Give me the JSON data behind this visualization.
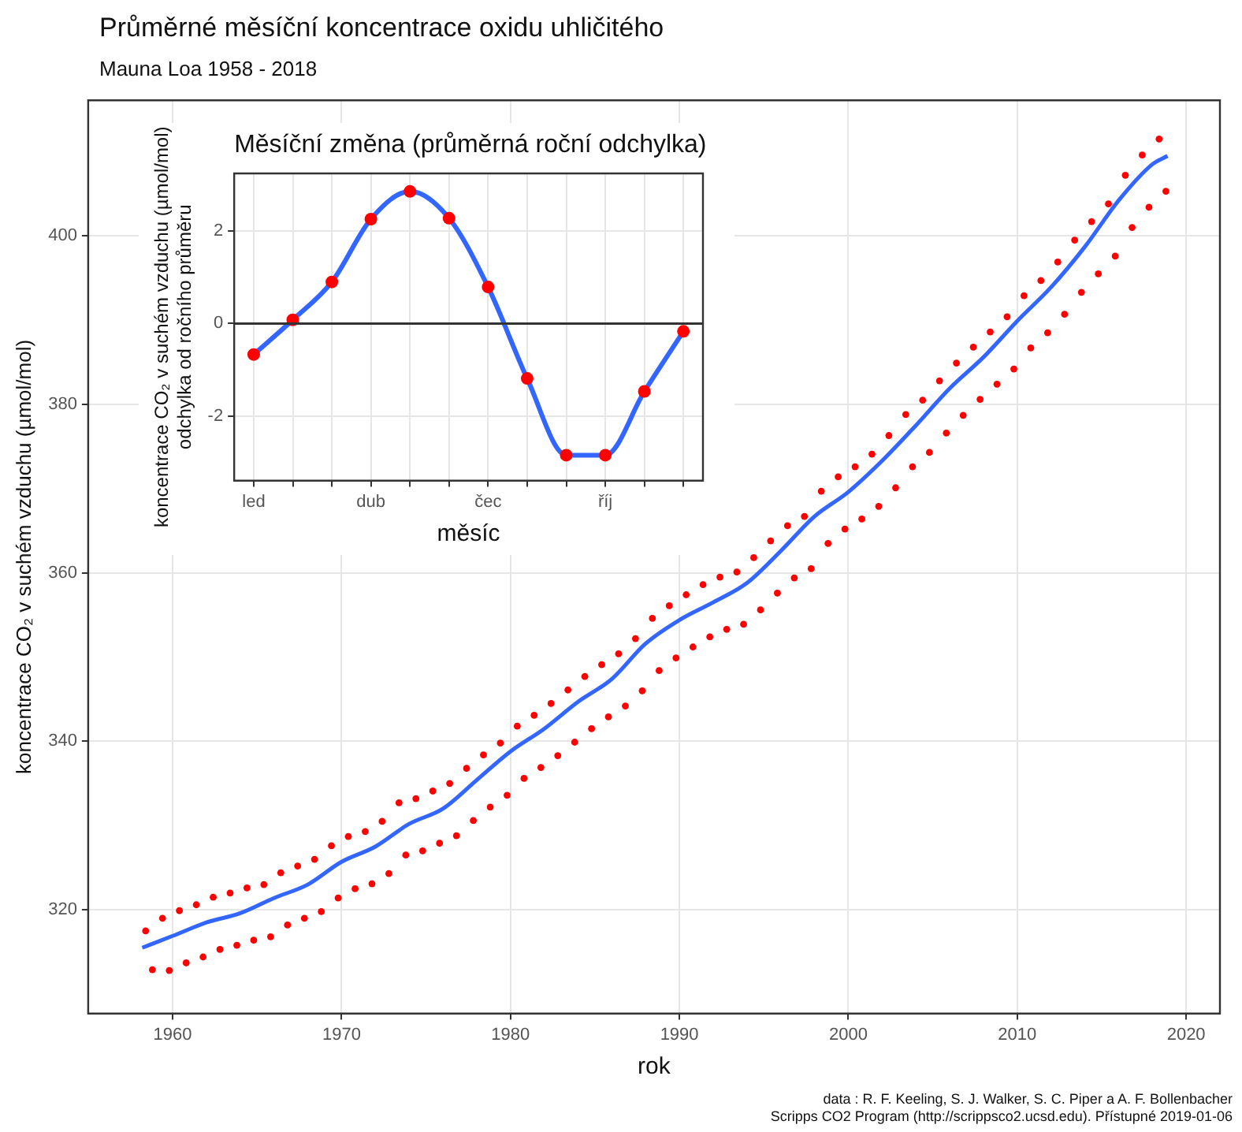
{
  "chart_data": [
    {
      "type": "scatter",
      "title": "Průměrné měsíční koncentrace oxidu uhličitého",
      "subtitle": "Mauna Loa 1958 - 2018",
      "xlabel": "rok",
      "ylabel": "koncentrace CO₂ v suchém vzduchu (µmol/mol)",
      "xlim": [
        1955,
        2022
      ],
      "ylim": [
        307.7,
        416.1
      ],
      "xticks": [
        1960,
        1970,
        1980,
        1990,
        2000,
        2010,
        2020
      ],
      "yticks": [
        320,
        340,
        360,
        380,
        400
      ],
      "grid": true,
      "annotations": [
        "data : R. F. Keeling, S. J. Walker, S. C. Piper a A. F. Bollenbacher",
        "Scripps CO2 Program (http://scrippsco2.ucsd.edu). Přístupné 2019-01-06"
      ],
      "series": [
        {
          "marker": "circle",
          "color": "#ff0000",
          "x": [
            1958.4,
            1958.8,
            1959.4,
            1959.8,
            1960.4,
            1960.8,
            1961.4,
            1961.8,
            1962.4,
            1962.8,
            1963.4,
            1963.8,
            1964.4,
            1964.8,
            1965.4,
            1965.8,
            1966.4,
            1966.8,
            1967.4,
            1967.8,
            1968.4,
            1968.8,
            1969.4,
            1969.8,
            1970.4,
            1970.8,
            1971.4,
            1971.8,
            1972.4,
            1972.8,
            1973.4,
            1973.8,
            1974.4,
            1974.8,
            1975.4,
            1975.8,
            1976.4,
            1976.8,
            1977.4,
            1977.8,
            1978.4,
            1978.8,
            1979.4,
            1979.8,
            1980.4,
            1980.8,
            1981.4,
            1981.8,
            1982.4,
            1982.8,
            1983.4,
            1983.8,
            1984.4,
            1984.8,
            1985.4,
            1985.8,
            1986.4,
            1986.8,
            1987.4,
            1987.8,
            1988.4,
            1988.8,
            1989.4,
            1989.8,
            1990.4,
            1990.8,
            1991.4,
            1991.8,
            1992.4,
            1992.8,
            1993.4,
            1993.8,
            1994.4,
            1994.8,
            1995.4,
            1995.8,
            1996.4,
            1996.8,
            1997.4,
            1997.8,
            1998.4,
            1998.8,
            1999.4,
            1999.8,
            2000.4,
            2000.8,
            2001.4,
            2001.8,
            2002.4,
            2002.8,
            2003.4,
            2003.8,
            2004.4,
            2004.8,
            2005.4,
            2005.8,
            2006.4,
            2006.8,
            2007.4,
            2007.8,
            2008.4,
            2008.8,
            2009.4,
            2009.8,
            2010.4,
            2010.8,
            2011.4,
            2011.8,
            2012.4,
            2012.8,
            2013.4,
            2013.8,
            2014.4,
            2014.8,
            2015.4,
            2015.8,
            2016.4,
            2016.8,
            2017.4,
            2017.8,
            2018.4,
            2018.8
          ],
          "values": [
            317.5,
            312.9,
            319.0,
            312.8,
            319.9,
            313.7,
            320.6,
            314.4,
            321.5,
            315.3,
            322.0,
            315.8,
            322.6,
            316.4,
            323.0,
            316.8,
            324.4,
            318.2,
            325.2,
            319.0,
            326.0,
            319.8,
            327.6,
            321.4,
            328.7,
            322.5,
            329.3,
            323.1,
            330.5,
            324.3,
            332.7,
            326.5,
            333.2,
            327.0,
            334.1,
            327.9,
            335.0,
            328.8,
            336.8,
            330.6,
            338.4,
            332.2,
            339.8,
            333.6,
            341.8,
            335.6,
            343.1,
            336.9,
            344.5,
            338.3,
            346.1,
            339.9,
            347.7,
            341.5,
            349.1,
            342.9,
            350.4,
            344.2,
            352.2,
            346.0,
            354.6,
            348.4,
            356.1,
            349.9,
            357.4,
            351.2,
            358.6,
            352.4,
            359.5,
            353.3,
            360.1,
            353.9,
            361.8,
            355.6,
            363.8,
            357.6,
            365.6,
            359.4,
            366.7,
            360.5,
            369.7,
            363.5,
            371.4,
            365.2,
            372.6,
            366.4,
            374.1,
            367.9,
            376.3,
            370.1,
            378.8,
            372.6,
            380.5,
            374.3,
            382.8,
            376.6,
            384.9,
            378.7,
            386.8,
            380.6,
            388.6,
            382.4,
            390.4,
            384.2,
            392.9,
            386.7,
            394.7,
            388.5,
            396.9,
            390.7,
            399.5,
            393.3,
            401.7,
            395.5,
            403.8,
            397.6,
            407.2,
            401.0,
            409.6,
            403.4,
            411.5,
            405.3
          ]
        },
        {
          "type": "line",
          "marker": "none",
          "color": "#3366ff",
          "x": [
            1958.2,
            1960,
            1962,
            1964,
            1966,
            1968,
            1970,
            1972,
            1974,
            1976,
            1978,
            1980,
            1982,
            1984,
            1986,
            1988,
            1990,
            1992,
            1994,
            1996,
            1998,
            2000,
            2002,
            2004,
            2006,
            2008,
            2010,
            2012,
            2014,
            2016,
            2018,
            2018.9
          ],
          "values": [
            315.5,
            316.9,
            318.5,
            319.6,
            321.4,
            323.0,
            325.7,
            327.5,
            330.2,
            332.0,
            335.4,
            338.8,
            341.5,
            344.7,
            347.4,
            351.6,
            354.4,
            356.5,
            358.8,
            362.6,
            366.7,
            369.6,
            373.3,
            377.5,
            381.9,
            385.6,
            389.9,
            393.9,
            398.7,
            404.2,
            408.5,
            409.5
          ]
        }
      ]
    },
    {
      "type": "scatter",
      "title": "Měsíční změna (průměrná roční odchylka)",
      "xlabel": "měsíc",
      "ylabel": "koncentrace CO₂ v suchém vzduchu (µmol/mol)\nodchylka od ročního průměru",
      "categories": [
        "led",
        null,
        null,
        "dub",
        null,
        null,
        "čec",
        null,
        null,
        "říj",
        null,
        null
      ],
      "ylim": [
        -3.4,
        3.25
      ],
      "yticks": [
        -2,
        0,
        2
      ],
      "grid": true,
      "ref_lines": [
        {
          "axis": "y",
          "value": 0,
          "color": "#333333"
        }
      ],
      "series": [
        {
          "type": "line",
          "marker": "none",
          "color": "#3366ff",
          "values": [
            -0.67,
            0.08,
            0.9,
            2.26,
            2.86,
            2.28,
            0.79,
            -1.19,
            -2.85,
            -2.85,
            -1.47,
            -0.17
          ]
        },
        {
          "marker": "circle",
          "color": "#ff0000",
          "values": [
            -0.67,
            0.08,
            0.9,
            2.26,
            2.86,
            2.28,
            0.79,
            -1.19,
            -2.85,
            -2.85,
            -1.47,
            -0.17
          ]
        }
      ]
    }
  ]
}
